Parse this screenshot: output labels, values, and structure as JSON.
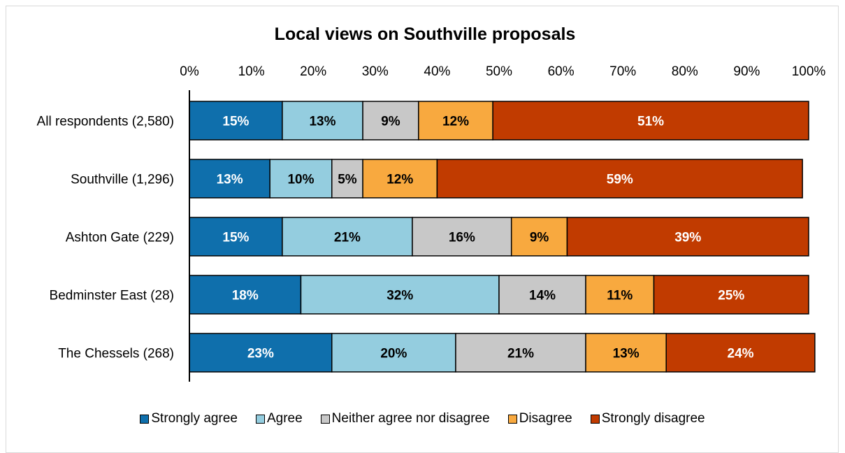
{
  "chart_data": {
    "type": "bar",
    "orientation": "horizontal",
    "stacked": true,
    "title": "Local views on Southville proposals",
    "xlabel": "",
    "ylabel": "",
    "xlim": [
      0,
      100
    ],
    "x_ticks": [
      "0%",
      "10%",
      "20%",
      "30%",
      "40%",
      "50%",
      "60%",
      "70%",
      "80%",
      "90%",
      "100%"
    ],
    "grid": false,
    "legend_position": "bottom",
    "categories": [
      "All respondents (2,580)",
      "Southville (1,296)",
      "Ashton Gate (229)",
      "Bedminster East (28)",
      "The Chessels (268)"
    ],
    "series": [
      {
        "name": "Strongly agree",
        "color": "#0f6fac",
        "label_color": "#ffffff",
        "values": [
          15,
          13,
          15,
          18,
          23
        ],
        "labels": [
          "15%",
          "13%",
          "15%",
          "18%",
          "23%"
        ]
      },
      {
        "name": "Agree",
        "color": "#94cddf",
        "label_color": "#000000",
        "values": [
          13,
          10,
          21,
          32,
          20
        ],
        "labels": [
          "13%",
          "10%",
          "21%",
          "32%",
          "20%"
        ]
      },
      {
        "name": "Neither agree nor disagree",
        "color": "#c8c8c8",
        "label_color": "#000000",
        "values": [
          9,
          5,
          16,
          14,
          21
        ],
        "labels": [
          "9%",
          "5%",
          "16%",
          "14%",
          "21%"
        ]
      },
      {
        "name": "Disagree",
        "color": "#f8a93f",
        "label_color": "#000000",
        "values": [
          12,
          12,
          9,
          11,
          13
        ],
        "labels": [
          "12%",
          "12%",
          "9%",
          "11%",
          "13%"
        ]
      },
      {
        "name": "Strongly disagree",
        "color": "#c13b00",
        "label_color": "#ffffff",
        "values": [
          51,
          59,
          39,
          25,
          24
        ],
        "labels": [
          "51%",
          "59%",
          "39%",
          "25%",
          "24%"
        ]
      }
    ]
  }
}
